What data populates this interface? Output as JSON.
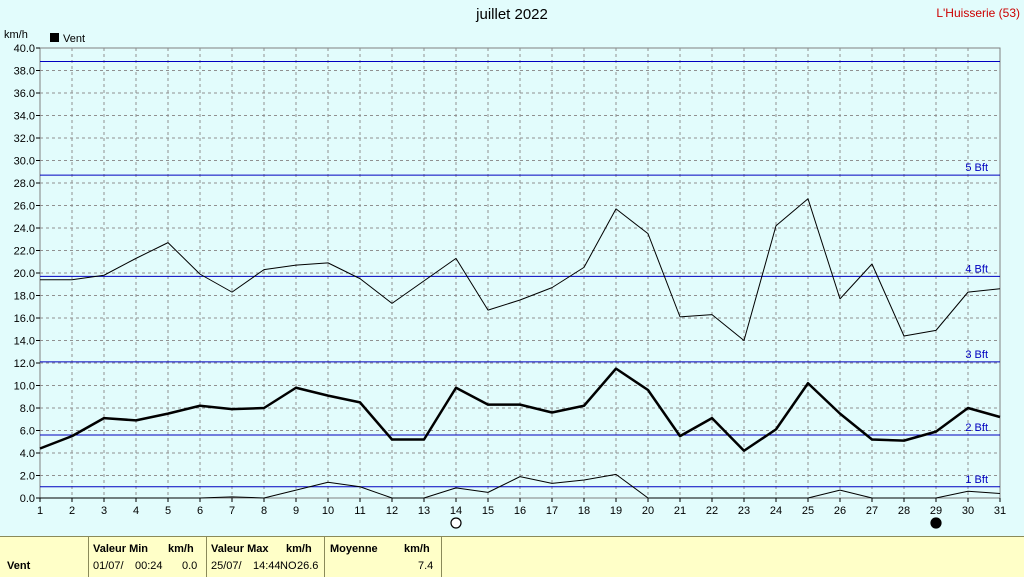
{
  "header": {
    "title": "juillet 2022",
    "station": "L'Huisserie (53)"
  },
  "chart_data": {
    "type": "line",
    "y_unit": "km/h",
    "legend": "Vent",
    "legend_color": "#000000",
    "x": [
      1,
      2,
      3,
      4,
      5,
      6,
      7,
      8,
      9,
      10,
      11,
      12,
      13,
      14,
      15,
      16,
      17,
      18,
      19,
      20,
      21,
      22,
      23,
      24,
      25,
      26,
      27,
      28,
      29,
      30,
      31
    ],
    "ylim": [
      0,
      40
    ],
    "yticks": [
      "0.0",
      "2.0",
      "4.0",
      "6.0",
      "8.0",
      "10.0",
      "12.0",
      "14.0",
      "16.0",
      "18.0",
      "20.0",
      "22.0",
      "24.0",
      "26.0",
      "28.0",
      "30.0",
      "32.0",
      "34.0",
      "36.0",
      "38.0",
      "40.0"
    ],
    "series": [
      {
        "name": "max",
        "values": [
          19.4,
          19.4,
          19.8,
          21.3,
          22.7,
          19.9,
          18.3,
          20.3,
          20.7,
          20.9,
          19.5,
          17.3,
          19.3,
          21.3,
          16.7,
          17.6,
          18.7,
          20.5,
          25.7,
          23.5,
          16.1,
          16.3,
          14.0,
          24.2,
          26.6,
          17.7,
          20.8,
          14.4,
          14.9,
          18.3,
          18.6
        ]
      },
      {
        "name": "moyenne",
        "values": [
          4.4,
          5.5,
          7.1,
          6.9,
          7.5,
          8.2,
          7.9,
          8.0,
          9.8,
          9.1,
          8.5,
          5.2,
          5.2,
          9.8,
          8.3,
          8.3,
          7.6,
          8.2,
          11.5,
          9.6,
          5.5,
          7.1,
          4.2,
          6.1,
          10.2,
          7.5,
          5.2,
          5.1,
          5.9,
          8.0,
          7.2
        ]
      },
      {
        "name": "min",
        "values": [
          0,
          0,
          0,
          0,
          0,
          0,
          0.1,
          0,
          0.7,
          1.4,
          1.0,
          0,
          0,
          0.9,
          0.5,
          1.9,
          1.3,
          1.6,
          2.1,
          0,
          0,
          0,
          0,
          0,
          0,
          0.7,
          0,
          0,
          0,
          0.6,
          0.4
        ]
      }
    ],
    "beaufort": [
      {
        "value": 1.0,
        "label": "1 Bft"
      },
      {
        "value": 5.6,
        "label": "2 Bft"
      },
      {
        "value": 12.1,
        "label": "3 Bft"
      },
      {
        "value": 19.7,
        "label": "4 Bft"
      },
      {
        "value": 28.7,
        "label": "5 Bft"
      },
      {
        "value": 38.8,
        "label": ""
      }
    ],
    "moon_phases": [
      {
        "day": 14,
        "phase": "full"
      },
      {
        "day": 29,
        "phase": "new"
      }
    ],
    "grid": true,
    "colors": {
      "grid": "#909090",
      "beaufort": "#0000c0",
      "series": "#000000"
    }
  },
  "footer": {
    "row_label": "Vent",
    "min": {
      "header": "Valeur Min",
      "unit": "km/h",
      "date": "01/07/",
      "time": "00:24",
      "value": "0.0"
    },
    "max": {
      "header": "Valeur Max",
      "unit": "km/h",
      "date": "25/07/",
      "time": "14:44",
      "dir": "NO",
      "value": "26.6"
    },
    "avg": {
      "header": "Moyenne",
      "unit": "km/h",
      "value": "7.4"
    }
  }
}
